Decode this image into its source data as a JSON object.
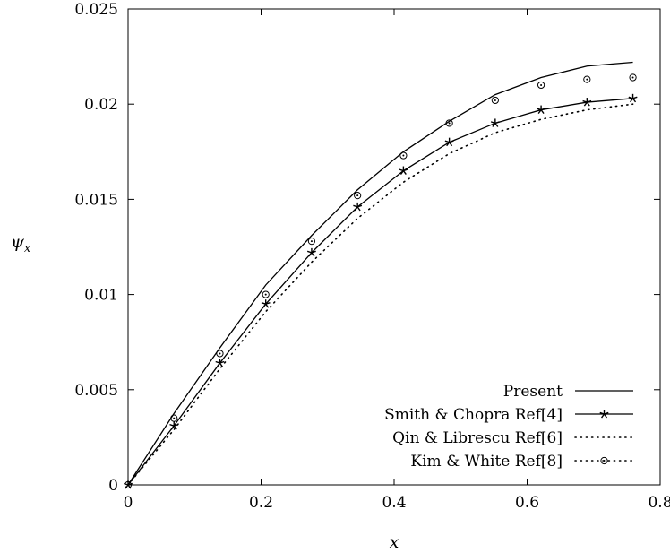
{
  "chart_data": {
    "type": "line",
    "title": "",
    "xlabel": "x",
    "ylabel": "ψ",
    "ylabel_sub": "x",
    "xlim": [
      0,
      0.8
    ],
    "ylim": [
      0,
      0.025
    ],
    "x_ticks": [
      0,
      0.2,
      0.4,
      0.6,
      0.8
    ],
    "x_tick_labels": [
      "0",
      "0.2",
      "0.4",
      "0.6",
      "0.8"
    ],
    "y_ticks": [
      0,
      0.005,
      0.01,
      0.015,
      0.02,
      0.025
    ],
    "y_tick_labels": [
      "0",
      "0.005",
      "0.01",
      "0.015",
      "0.02",
      "0.025"
    ],
    "grid": false,
    "legend_position": "bottom-right",
    "series": [
      {
        "name": "Present",
        "style": "solid",
        "x": [
          0,
          0.069,
          0.138,
          0.207,
          0.276,
          0.345,
          0.414,
          0.483,
          0.552,
          0.621,
          0.69,
          0.759
        ],
        "y": [
          0,
          0.00375,
          0.0072,
          0.0105,
          0.0131,
          0.0155,
          0.0175,
          0.0191,
          0.0205,
          0.0214,
          0.022,
          0.0222
        ]
      },
      {
        "name": "Smith & Chopra Ref[4]",
        "style": "solid-star",
        "x": [
          0,
          0.069,
          0.138,
          0.207,
          0.276,
          0.345,
          0.414,
          0.483,
          0.552,
          0.621,
          0.69,
          0.759
        ],
        "y": [
          0,
          0.0031,
          0.0064,
          0.0095,
          0.0122,
          0.0146,
          0.0165,
          0.018,
          0.019,
          0.0197,
          0.0201,
          0.0203
        ]
      },
      {
        "name": "Qin & Librescu Ref[6]",
        "style": "dotted",
        "x": [
          0,
          0.069,
          0.138,
          0.207,
          0.276,
          0.345,
          0.414,
          0.483,
          0.552,
          0.621,
          0.69,
          0.759
        ],
        "y": [
          0,
          0.0029,
          0.0061,
          0.0091,
          0.0117,
          0.014,
          0.0159,
          0.0174,
          0.0185,
          0.0192,
          0.0197,
          0.02
        ]
      },
      {
        "name": "Kim & White Ref[8]",
        "style": "dotted-circle",
        "x": [
          0,
          0.069,
          0.138,
          0.207,
          0.276,
          0.345,
          0.414,
          0.483,
          0.552,
          0.621,
          0.69,
          0.759
        ],
        "y": [
          0,
          0.0035,
          0.0069,
          0.01,
          0.0128,
          0.0152,
          0.0173,
          0.019,
          0.0202,
          0.021,
          0.0213,
          0.0214
        ]
      }
    ]
  }
}
